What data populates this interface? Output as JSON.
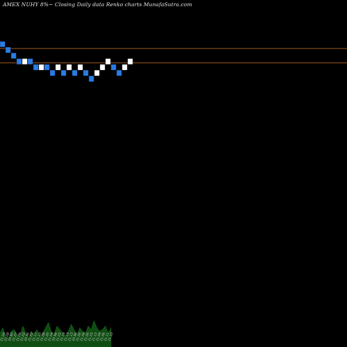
{
  "title": "AMEX  NUHY 8%~  Closing Daily data  Renko  charts MunafaSutra.com",
  "colors": {
    "background": "#000000",
    "up_brick": "#ffffff",
    "down_brick": "#2a7be4",
    "level_line": "#b8651f",
    "volume": "#0f4d12"
  },
  "chart_data": {
    "type": "renko",
    "title": "AMEX  NUHY 8%~  Closing Daily data  Renko  charts MunafaSutra.com",
    "bricks": [
      {
        "dir": "down",
        "top": 21.24,
        "bottom": 21.22
      },
      {
        "dir": "down",
        "top": 21.22,
        "bottom": 21.2
      },
      {
        "dir": "down",
        "top": 21.2,
        "bottom": 21.18
      },
      {
        "dir": "down",
        "top": 21.18,
        "bottom": 21.16
      },
      {
        "dir": "up",
        "top": 21.18,
        "bottom": 21.16
      },
      {
        "dir": "down",
        "top": 21.18,
        "bottom": 21.16
      },
      {
        "dir": "down",
        "top": 21.16,
        "bottom": 21.14
      },
      {
        "dir": "up",
        "top": 21.16,
        "bottom": 21.14
      },
      {
        "dir": "down",
        "top": 21.16,
        "bottom": 21.14
      },
      {
        "dir": "down",
        "top": 21.14,
        "bottom": 21.12
      },
      {
        "dir": "up",
        "top": 21.16,
        "bottom": 21.14
      },
      {
        "dir": "down",
        "top": 21.14,
        "bottom": 21.12
      },
      {
        "dir": "up",
        "top": 21.16,
        "bottom": 21.14
      },
      {
        "dir": "down",
        "top": 21.14,
        "bottom": 21.12
      },
      {
        "dir": "up",
        "top": 21.16,
        "bottom": 21.14
      },
      {
        "dir": "down",
        "top": 21.14,
        "bottom": 21.12
      },
      {
        "dir": "down",
        "top": 21.12,
        "bottom": 21.1
      },
      {
        "dir": "up",
        "top": 21.14,
        "bottom": 21.12
      },
      {
        "dir": "up",
        "top": 21.16,
        "bottom": 21.14
      },
      {
        "dir": "up",
        "top": 21.18,
        "bottom": 21.16
      },
      {
        "dir": "down",
        "top": 21.16,
        "bottom": 21.14
      },
      {
        "dir": "down",
        "top": 21.14,
        "bottom": 21.12
      },
      {
        "dir": "up",
        "top": 21.16,
        "bottom": 21.14
      },
      {
        "dir": "up",
        "top": 21.18,
        "bottom": 21.16
      }
    ],
    "levels": [
      21.215,
      21.165
    ],
    "ylim": [
      20.25,
      21.35
    ],
    "volume": [
      8,
      11,
      6,
      5,
      9,
      10,
      7,
      6,
      12,
      8,
      5,
      9,
      7,
      10,
      6,
      8,
      11,
      14,
      9,
      7,
      12,
      10,
      8,
      6,
      9,
      13,
      10,
      7,
      11,
      9,
      8,
      12,
      10,
      15,
      11,
      9,
      10,
      12,
      8,
      11
    ],
    "x_tick_labels": [
      "21.04",
      "21.08",
      "20.90",
      "21.07",
      "21.06",
      "21.03",
      "20.96",
      "21.02",
      "21.17",
      "21.10",
      "21.08",
      "21.00",
      "21.04",
      "20.98",
      "21.02",
      "21.19",
      "21.13",
      "21.13",
      "20.96",
      "21.00",
      "21.09",
      "21.06",
      "21.03",
      "21.12",
      "21.04",
      "21.06",
      "21.11",
      "21.10"
    ]
  }
}
